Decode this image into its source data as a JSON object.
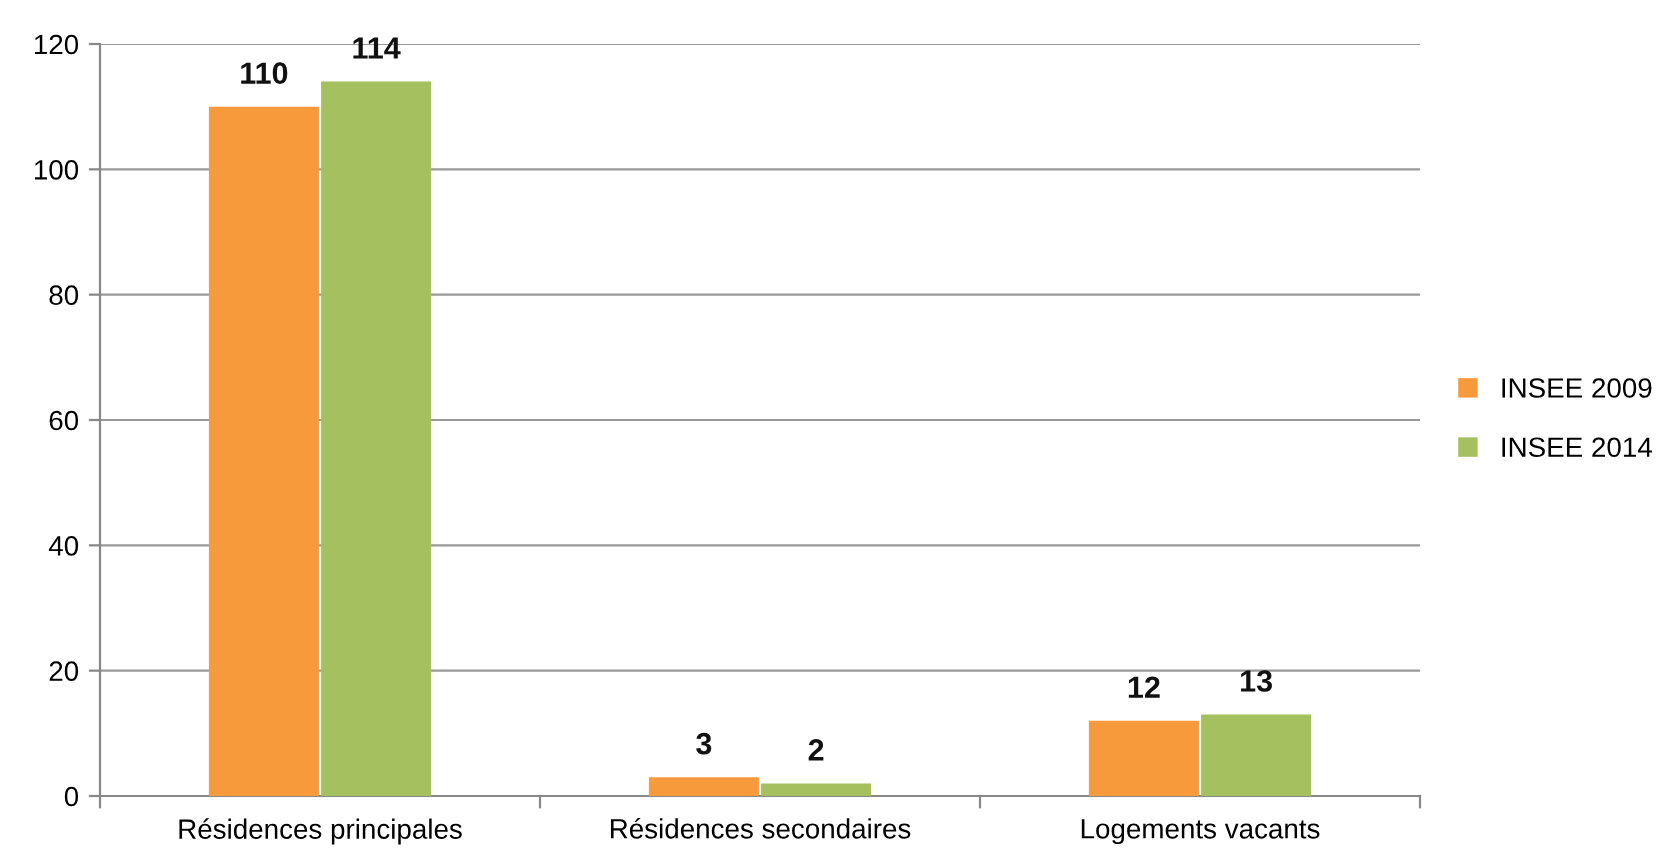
{
  "chart_data": {
    "type": "bar",
    "categories": [
      "Résidences principales",
      "Résidences secondaires",
      "Logements vacants"
    ],
    "series": [
      {
        "name": "INSEE 2009",
        "color": "#f79a3c",
        "values": [
          110,
          3,
          12
        ]
      },
      {
        "name": "INSEE 2014",
        "color": "#a4c05f",
        "values": [
          114,
          2,
          13
        ]
      }
    ],
    "ylim": [
      0,
      120
    ],
    "yticks": [
      0,
      20,
      40,
      60,
      80,
      100,
      120
    ],
    "grid": "y",
    "legend": "right",
    "data_labels": true
  }
}
